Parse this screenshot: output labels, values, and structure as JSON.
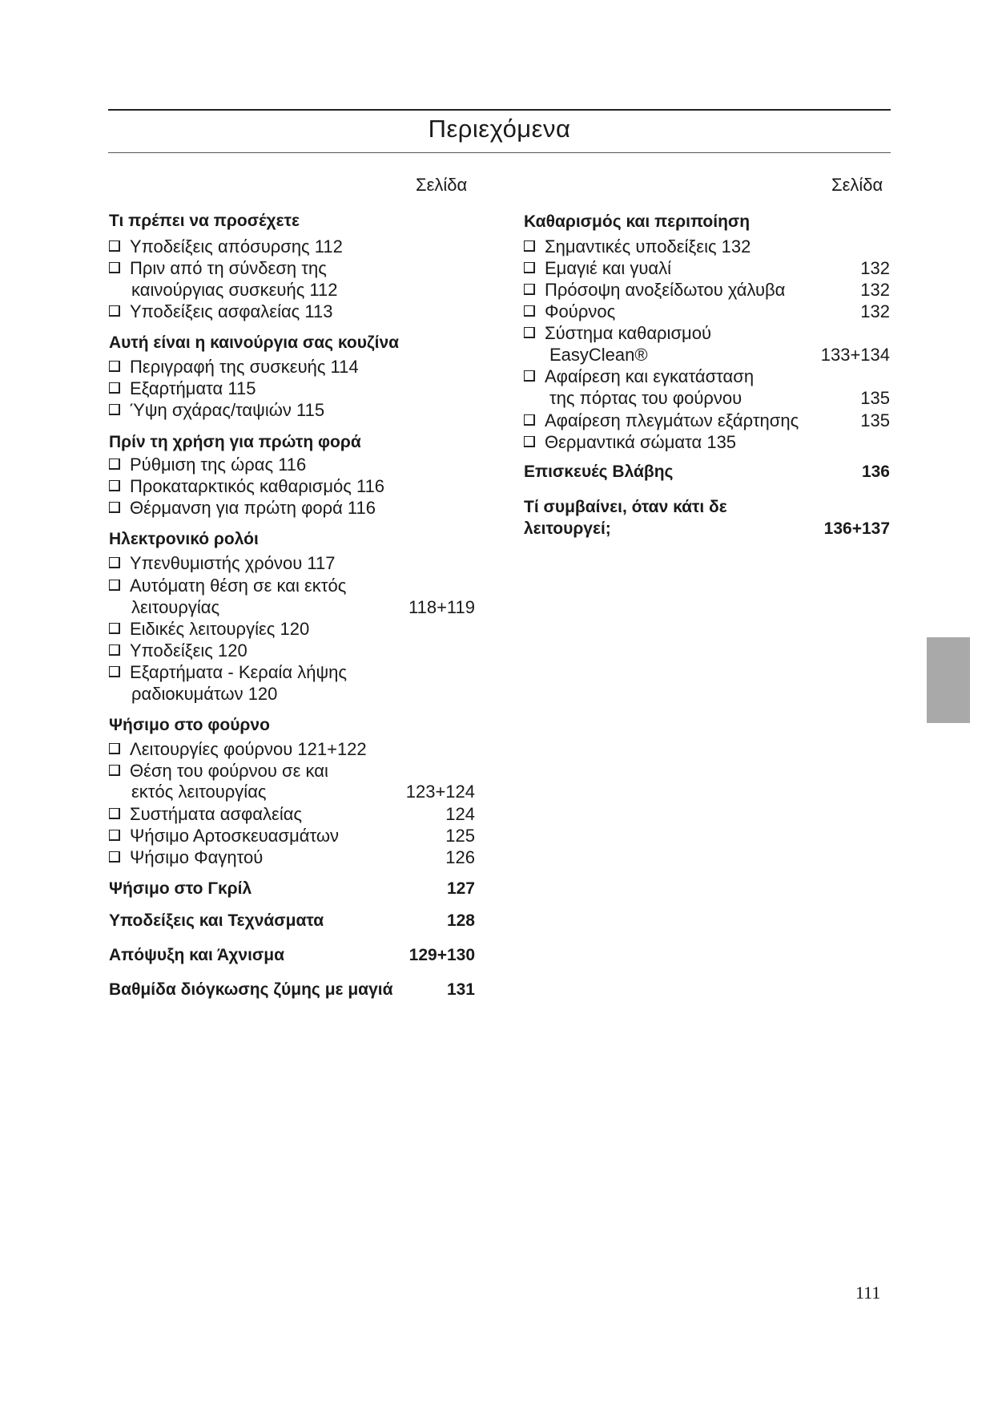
{
  "title": "Περιεχόμενα",
  "page_column_label": "Σελίδα",
  "page_number": "111",
  "left_column": [
    {
      "kind": "heading",
      "text": "Τι πρέπει να προσέχετε"
    },
    {
      "kind": "item",
      "text": "Υποδείξεις απόσυρσης 112"
    },
    {
      "kind": "item",
      "text": "Πριν από τη σύνδεση της"
    },
    {
      "kind": "cont",
      "text": "καινούργιας συσκευής 112"
    },
    {
      "kind": "item",
      "text": "Υποδείξεις ασφαλείας 113"
    },
    {
      "kind": "heading",
      "text": "Αυτή είναι η καινούργια σας κουζίνα"
    },
    {
      "kind": "item",
      "text": "Περιγραφή της συσκευής 114"
    },
    {
      "kind": "item",
      "text": "Εξαρτήματα 115"
    },
    {
      "kind": "item",
      "text": "Ύψη σχάρας/ταψιών 115"
    },
    {
      "kind": "heading",
      "text": "Πρίν τη χρήση για πρώτη φορά"
    },
    {
      "kind": "item",
      "text": "Ρύθμιση της ώρας 116"
    },
    {
      "kind": "item",
      "text": "Προκαταρκτικός καθαρισμός 116"
    },
    {
      "kind": "item",
      "text": "Θέρμανση για πρώτη φορά 116"
    },
    {
      "kind": "heading",
      "text": "Ηλεκτρονικό ρολόι"
    },
    {
      "kind": "item",
      "text": "Υπενθυμιστής χρόνου 117"
    },
    {
      "kind": "item",
      "text": "Αυτόματη θέση σε και εκτός"
    },
    {
      "kind": "cont",
      "text": "λειτουργίας",
      "page": "118+119"
    },
    {
      "kind": "item",
      "text": "Ειδικές λειτουργίες 120"
    },
    {
      "kind": "item",
      "text": "Υποδείξεις 120"
    },
    {
      "kind": "item",
      "text": "Εξαρτήματα - Κεραία λήψης"
    },
    {
      "kind": "cont",
      "text": "ραδιοκυμάτων 120"
    },
    {
      "kind": "heading",
      "text": "Ψήσιμο στο φούρνο"
    },
    {
      "kind": "item",
      "text": "Λειτουργίες φούρνου 121+122"
    },
    {
      "kind": "item",
      "text": "Θέση του φούρνου σε και"
    },
    {
      "kind": "cont",
      "text": "εκτός λειτουργίας",
      "page": "123+124"
    },
    {
      "kind": "item",
      "text": "Συστήματα ασφαλείας",
      "page": "124"
    },
    {
      "kind": "item",
      "text": "Ψήσιμο Αρτοσκευασμάτων",
      "page": "125"
    },
    {
      "kind": "item",
      "text": "Ψήσιμο Φαγητού",
      "page": "126"
    },
    {
      "kind": "heading",
      "text": "Ψήσιμο στο Γκρίλ",
      "page": "127"
    },
    {
      "kind": "heading",
      "text": "Υποδείξεις και Τεχνάσματα",
      "page": "128"
    },
    {
      "kind": "heading",
      "text": "Απόψυξη και Άχνισμα",
      "page": "129+130"
    },
    {
      "kind": "heading",
      "text": "Βαθμίδα διόγκωσης ζύμης με μαγιά",
      "page": "131"
    }
  ],
  "right_column": [
    {
      "kind": "heading",
      "text": "Καθαρισμός και περιποίηση"
    },
    {
      "kind": "item",
      "text": "Σημαντικές υποδείξεις 132"
    },
    {
      "kind": "item",
      "text": "Εμαγιέ και γυαλί",
      "page": "132"
    },
    {
      "kind": "item",
      "text": "Πρόσοψη ανοξείδωτου χάλυβα",
      "page": "132"
    },
    {
      "kind": "item",
      "text": "Φούρνος",
      "page": "132"
    },
    {
      "kind": "item",
      "text": "Σύστημα καθαρισμού"
    },
    {
      "kind": "cont",
      "text": "EasyClean®",
      "page": "133+134"
    },
    {
      "kind": "item",
      "text": "Αφαίρεση και εγκατάσταση"
    },
    {
      "kind": "cont",
      "text": "της πόρτας του φούρνου",
      "page": "135"
    },
    {
      "kind": "item",
      "text": "Αφαίρεση πλεγμάτων εξάρτησης",
      "page": "135"
    },
    {
      "kind": "item",
      "text": "Θερμαντικά σώματα 135"
    },
    {
      "kind": "heading",
      "text": "Επισκευές Βλάβης",
      "page": "136"
    },
    {
      "kind": "heading",
      "text": "Τί συμβαίνει, όταν κάτι δε"
    },
    {
      "kind": "heading",
      "text": "λειτουργεί;",
      "page": "136+137"
    }
  ],
  "colors": {
    "text": "#1a1a1a",
    "tab": "#a9a9a9"
  }
}
